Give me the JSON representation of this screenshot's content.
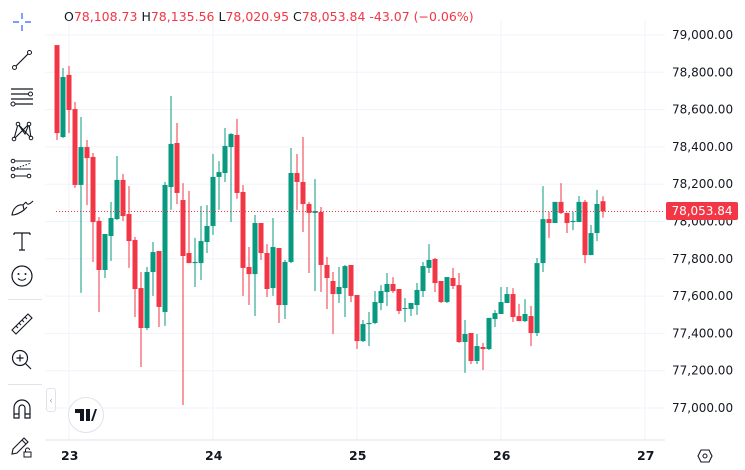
{
  "toolbar": {
    "tools": [
      "crosshair",
      "trend-line",
      "horizontal-lines",
      "pattern",
      "fib-retracement",
      "brush",
      "text",
      "emoji",
      "ruler",
      "zoom-in",
      "magnet",
      "lock-drawings"
    ]
  },
  "legend": {
    "open_label": "O",
    "open": "78,108.73",
    "high_label": "H",
    "high": "78,135.56",
    "low_label": "L",
    "low": "78,020.95",
    "close_label": "C",
    "close": "78,053.84",
    "change": "-43.07 (−0.06%)"
  },
  "last_price_label": "78,053.84",
  "logo_text": "TV",
  "colors": {
    "up": "#089981",
    "down": "#f23645",
    "grid": "#f0f3fa",
    "text": "#131722"
  },
  "chart_data": {
    "type": "candlestick",
    "title": "",
    "ylim": [
      76850,
      79100
    ],
    "y_ticks": [
      79000,
      78800,
      78600,
      78400,
      78200,
      78000,
      77800,
      77600,
      77400,
      77200,
      77000
    ],
    "y_tick_labels": [
      "79,000.00",
      "78,800.00",
      "78,600.00",
      "78,400.00",
      "78,200.00",
      "78,000.00",
      "77,800.00",
      "77,600.00",
      "77,400.00",
      "77,200.00",
      "77,000.00"
    ],
    "x_ticks": [
      {
        "label": "23",
        "index": 2
      },
      {
        "label": "24",
        "index": 26
      },
      {
        "label": "25",
        "index": 50
      },
      {
        "label": "26",
        "index": 74
      },
      {
        "label": "27",
        "index": 98
      }
    ],
    "last_price": 78053.84,
    "grid": true,
    "ohlc": [
      [
        78946,
        78946,
        78437,
        78474
      ],
      [
        78453,
        78823,
        78448,
        78775
      ],
      [
        78786,
        78834,
        78474,
        78598
      ],
      [
        78603,
        78641,
        78180,
        78196
      ],
      [
        78196,
        78560,
        77617,
        78399
      ],
      [
        78399,
        78437,
        78088,
        78340
      ],
      [
        78346,
        78367,
        77783,
        77997
      ],
      [
        78003,
        78024,
        77515,
        77740
      ],
      [
        77740,
        77933,
        77697,
        77933
      ],
      [
        77922,
        78105,
        77788,
        78019
      ],
      [
        78013,
        78351,
        78008,
        78223
      ],
      [
        78223,
        78255,
        78003,
        78029
      ],
      [
        78040,
        78190,
        77751,
        77895
      ],
      [
        77901,
        77917,
        77488,
        77638
      ],
      [
        77643,
        77729,
        77220,
        77429
      ],
      [
        77429,
        77756,
        77418,
        77729
      ],
      [
        77729,
        77890,
        77601,
        77836
      ],
      [
        77842,
        77842,
        77434,
        77542
      ],
      [
        77515,
        78212,
        77440,
        78196
      ],
      [
        78185,
        78673,
        78062,
        78416
      ],
      [
        78421,
        78528,
        78094,
        78153
      ],
      [
        78115,
        78206,
        77016,
        77815
      ],
      [
        77831,
        78164,
        77777,
        77777
      ],
      [
        77777,
        77912,
        77649,
        77783
      ],
      [
        77777,
        78083,
        77686,
        77895
      ],
      [
        77890,
        78088,
        77831,
        77976
      ],
      [
        77976,
        78362,
        77928,
        78239
      ],
      [
        78239,
        78324,
        78062,
        78265
      ],
      [
        78260,
        78501,
        78212,
        78405
      ],
      [
        78399,
        78474,
        77997,
        78469
      ],
      [
        78464,
        78550,
        78121,
        78153
      ],
      [
        78158,
        78196,
        77601,
        77751
      ],
      [
        77756,
        77863,
        77552,
        77718
      ],
      [
        77718,
        78035,
        77493,
        77992
      ],
      [
        77992,
        77992,
        77794,
        77831
      ],
      [
        77831,
        77879,
        77595,
        77638
      ],
      [
        77643,
        78019,
        77601,
        77863
      ],
      [
        77858,
        77858,
        77456,
        77552
      ],
      [
        77552,
        77794,
        77477,
        77783
      ],
      [
        77783,
        78394,
        77777,
        78260
      ],
      [
        78260,
        78362,
        78062,
        78212
      ],
      [
        78212,
        78453,
        77944,
        78094
      ],
      [
        78094,
        78105,
        77724,
        78046
      ],
      [
        78046,
        78228,
        77627,
        78056
      ],
      [
        78051,
        78078,
        77622,
        77767
      ],
      [
        77767,
        77810,
        77531,
        77697
      ],
      [
        77681,
        77729,
        77397,
        77611
      ],
      [
        77611,
        77756,
        77563,
        77649
      ],
      [
        77643,
        77767,
        77488,
        77761
      ],
      [
        77767,
        77767,
        77568,
        77601
      ],
      [
        77606,
        77606,
        77316,
        77359
      ],
      [
        77359,
        77472,
        77354,
        77450
      ],
      [
        77450,
        77515,
        77332,
        77456
      ],
      [
        77456,
        77627,
        77450,
        77568
      ],
      [
        77563,
        77659,
        77525,
        77627
      ],
      [
        77622,
        77724,
        77547,
        77665
      ],
      [
        77665,
        77702,
        77617,
        77627
      ],
      [
        77638,
        77638,
        77504,
        77520
      ],
      [
        77531,
        77590,
        77461,
        77536
      ],
      [
        77531,
        77563,
        77493,
        77563
      ],
      [
        77552,
        77670,
        77499,
        77633
      ],
      [
        77627,
        77783,
        77595,
        77761
      ],
      [
        77751,
        77879,
        77724,
        77794
      ],
      [
        77799,
        77804,
        77622,
        77670
      ],
      [
        77681,
        77681,
        77563,
        77568
      ],
      [
        77568,
        77702,
        77563,
        77702
      ],
      [
        77697,
        77751,
        77638,
        77654
      ],
      [
        77659,
        77724,
        77349,
        77354
      ],
      [
        77354,
        77472,
        77188,
        77397
      ],
      [
        77402,
        77402,
        77236,
        77252
      ],
      [
        77252,
        77397,
        77236,
        77332
      ],
      [
        77327,
        77349,
        77204,
        77316
      ],
      [
        77316,
        77483,
        77311,
        77483
      ],
      [
        77477,
        77525,
        77434,
        77509
      ],
      [
        77504,
        77649,
        77504,
        77568
      ],
      [
        77563,
        77649,
        77563,
        77611
      ],
      [
        77611,
        77643,
        77461,
        77488
      ],
      [
        77493,
        77558,
        77466,
        77466
      ],
      [
        77466,
        77584,
        77461,
        77504
      ],
      [
        77493,
        77547,
        77332,
        77402
      ],
      [
        77402,
        77804,
        77386,
        77777
      ],
      [
        77777,
        78190,
        77729,
        78013
      ],
      [
        78013,
        78051,
        77912,
        77992
      ],
      [
        77992,
        78105,
        77992,
        78105
      ],
      [
        78105,
        78206,
        78040,
        78046
      ],
      [
        78046,
        78046,
        77938,
        77992
      ],
      [
        77997,
        78051,
        77954,
        78003
      ],
      [
        77997,
        78137,
        77997,
        78105
      ],
      [
        78105,
        78115,
        77777,
        77820
      ],
      [
        77820,
        77981,
        77820,
        77938
      ],
      [
        77938,
        78169,
        77895,
        78094
      ],
      [
        78108.73,
        78135.56,
        78020.95,
        78053.84
      ]
    ]
  }
}
